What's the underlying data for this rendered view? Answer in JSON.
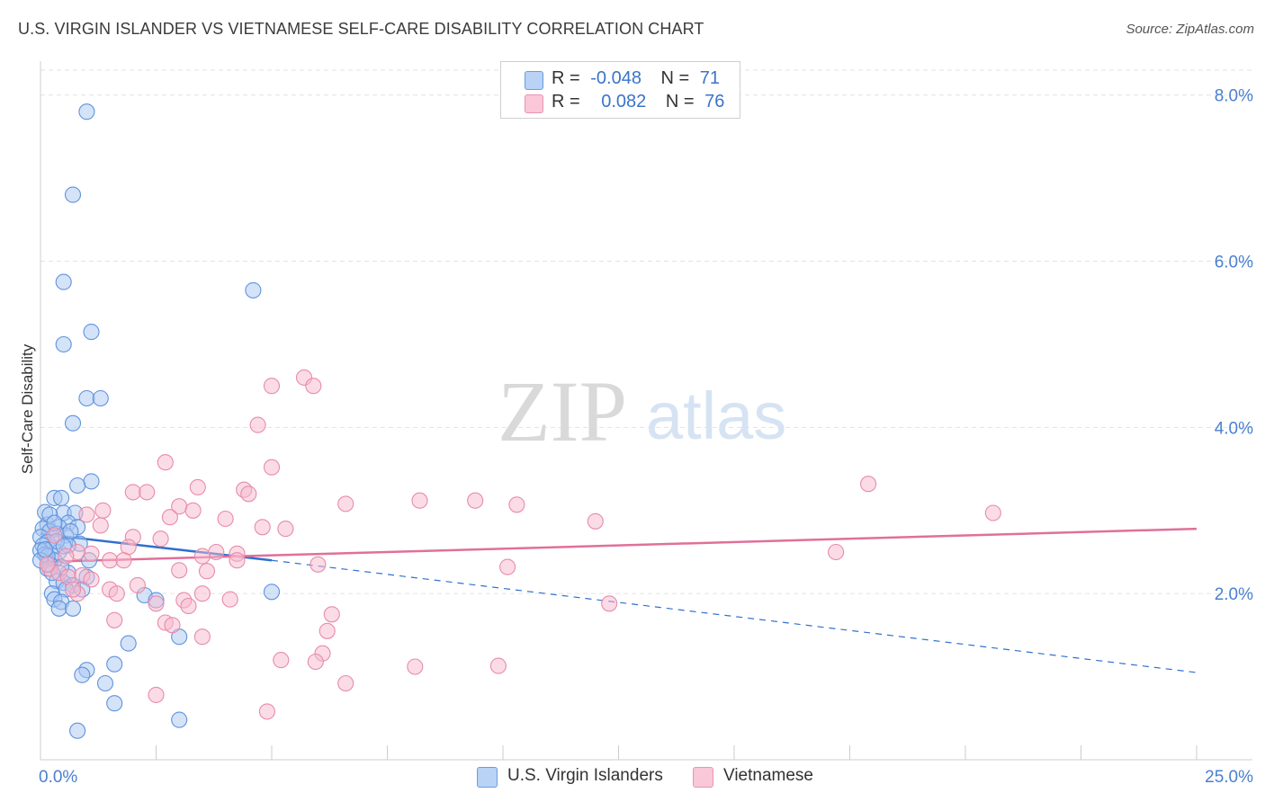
{
  "header": {
    "title": "U.S. VIRGIN ISLANDER VS VIETNAMESE SELF-CARE DISABILITY CORRELATION CHART",
    "source": "Source: ZipAtlas.com"
  },
  "stats": {
    "row1": {
      "r_label": "R =",
      "r_value": "-0.048",
      "n_label": "N =",
      "n_value": "71"
    },
    "row2": {
      "r_label": "R =",
      "r_value": "0.082",
      "n_label": "N =",
      "n_value": "76"
    }
  },
  "legend": {
    "blue_label": "U.S. Virgin Islanders",
    "pink_label": "Vietnamese"
  },
  "watermark": {
    "zip": "ZIP",
    "atlas": "atlas"
  },
  "colors": {
    "blue_fill": "#a9c8f2",
    "blue_stroke": "#5f93dd",
    "blue_line": "#3070cf",
    "pink_fill": "#f7b9cd",
    "pink_stroke": "#e88aaa",
    "pink_line": "#e0709a",
    "tick_color": "#4a7fcf"
  },
  "chart_data": {
    "type": "scatter",
    "title": "U.S. VIRGIN ISLANDER VS VIETNAMESE SELF-CARE DISABILITY CORRELATION CHART",
    "xlabel": "",
    "ylabel": "Self-Care Disability",
    "xlim": [
      0,
      25
    ],
    "ylim": [
      0,
      8.3
    ],
    "x_tick_labels": [
      {
        "value": 0,
        "label": "0.0%"
      },
      {
        "value": 25,
        "label": "25.0%"
      }
    ],
    "y_tick_labels": [
      {
        "value": 2,
        "label": "2.0%"
      },
      {
        "value": 4,
        "label": "4.0%"
      },
      {
        "value": 6,
        "label": "6.0%"
      },
      {
        "value": 8,
        "label": "8.0%"
      }
    ],
    "x_minor_ticks": [
      2.5,
      5,
      7.5,
      10,
      12.5,
      15,
      17.5,
      20,
      22.5,
      25
    ],
    "grid": true,
    "series": [
      {
        "name": "U.S. Virgin Islanders",
        "color": "#5f93dd",
        "r": -0.048,
        "n": 71,
        "trend": {
          "x_solid": [
            0,
            5
          ],
          "y_solid": [
            2.72,
            2.4
          ],
          "x_dash": [
            5,
            25
          ],
          "y_dash": [
            2.4,
            1.05
          ]
        },
        "points": [
          [
            1.0,
            7.8
          ],
          [
            0.7,
            6.8
          ],
          [
            0.5,
            5.75
          ],
          [
            4.6,
            5.65
          ],
          [
            1.1,
            5.15
          ],
          [
            0.5,
            5.0
          ],
          [
            1.0,
            4.35
          ],
          [
            1.3,
            4.35
          ],
          [
            0.7,
            4.05
          ],
          [
            1.1,
            3.35
          ],
          [
            0.8,
            3.3
          ],
          [
            0.3,
            3.15
          ],
          [
            0.45,
            3.15
          ],
          [
            0.1,
            2.98
          ],
          [
            0.5,
            2.97
          ],
          [
            0.75,
            2.97
          ],
          [
            0.6,
            2.85
          ],
          [
            0.15,
            2.83
          ],
          [
            0.4,
            2.8
          ],
          [
            0.8,
            2.8
          ],
          [
            0.05,
            2.78
          ],
          [
            0.2,
            2.75
          ],
          [
            0.35,
            2.72
          ],
          [
            0.55,
            2.7
          ],
          [
            0.0,
            2.68
          ],
          [
            0.15,
            2.62
          ],
          [
            0.85,
            2.6
          ],
          [
            0.05,
            2.58
          ],
          [
            0.25,
            2.55
          ],
          [
            0.0,
            2.52
          ],
          [
            0.4,
            2.5
          ],
          [
            0.1,
            2.47
          ],
          [
            0.3,
            2.4
          ],
          [
            1.05,
            2.4
          ],
          [
            0.2,
            2.35
          ],
          [
            0.6,
            2.25
          ],
          [
            1.0,
            2.2
          ],
          [
            0.35,
            2.15
          ],
          [
            0.5,
            2.13
          ],
          [
            0.7,
            2.1
          ],
          [
            0.55,
            2.05
          ],
          [
            0.9,
            2.05
          ],
          [
            0.25,
            2.0
          ],
          [
            5.0,
            2.02
          ],
          [
            2.25,
            1.98
          ],
          [
            2.5,
            1.92
          ],
          [
            0.3,
            1.93
          ],
          [
            0.45,
            1.9
          ],
          [
            0.4,
            1.82
          ],
          [
            0.7,
            1.82
          ],
          [
            3.0,
            1.48
          ],
          [
            1.9,
            1.4
          ],
          [
            1.6,
            1.15
          ],
          [
            1.0,
            1.08
          ],
          [
            0.9,
            1.02
          ],
          [
            1.4,
            0.92
          ],
          [
            1.6,
            0.68
          ],
          [
            3.0,
            0.48
          ],
          [
            0.8,
            0.35
          ],
          [
            0.15,
            2.3
          ],
          [
            0.6,
            2.58
          ],
          [
            0.35,
            2.63
          ],
          [
            0.2,
            2.95
          ],
          [
            0.15,
            2.45
          ],
          [
            0.45,
            2.32
          ],
          [
            0.0,
            2.4
          ],
          [
            0.25,
            2.25
          ],
          [
            0.3,
            2.85
          ],
          [
            0.65,
            2.75
          ],
          [
            0.1,
            2.53
          ],
          [
            0.5,
            2.57
          ]
        ]
      },
      {
        "name": "Vietnamese",
        "color": "#e88aaa",
        "r": 0.082,
        "n": 76,
        "trend": {
          "x_solid": [
            0,
            25
          ],
          "y_solid": [
            2.38,
            2.78
          ]
        },
        "points": [
          [
            5.7,
            4.6
          ],
          [
            5.0,
            4.5
          ],
          [
            5.9,
            4.5
          ],
          [
            4.7,
            4.03
          ],
          [
            2.7,
            3.58
          ],
          [
            5.0,
            3.52
          ],
          [
            17.9,
            3.32
          ],
          [
            3.4,
            3.28
          ],
          [
            4.4,
            3.25
          ],
          [
            2.0,
            3.22
          ],
          [
            2.3,
            3.22
          ],
          [
            4.5,
            3.2
          ],
          [
            9.4,
            3.12
          ],
          [
            8.2,
            3.12
          ],
          [
            6.6,
            3.08
          ],
          [
            10.3,
            3.07
          ],
          [
            3.0,
            3.05
          ],
          [
            1.35,
            3.0
          ],
          [
            3.3,
            3.0
          ],
          [
            1.0,
            2.95
          ],
          [
            20.6,
            2.97
          ],
          [
            2.8,
            2.92
          ],
          [
            4.0,
            2.9
          ],
          [
            12.0,
            2.87
          ],
          [
            1.3,
            2.82
          ],
          [
            4.8,
            2.8
          ],
          [
            5.3,
            2.78
          ],
          [
            2.0,
            2.68
          ],
          [
            2.6,
            2.66
          ],
          [
            1.9,
            2.56
          ],
          [
            1.1,
            2.48
          ],
          [
            3.8,
            2.5
          ],
          [
            4.25,
            2.48
          ],
          [
            3.5,
            2.45
          ],
          [
            4.25,
            2.4
          ],
          [
            17.2,
            2.5
          ],
          [
            1.5,
            2.4
          ],
          [
            0.8,
            2.5
          ],
          [
            6.0,
            2.35
          ],
          [
            10.1,
            2.32
          ],
          [
            3.0,
            2.28
          ],
          [
            3.6,
            2.27
          ],
          [
            0.2,
            2.3
          ],
          [
            0.4,
            2.25
          ],
          [
            0.6,
            2.2
          ],
          [
            0.9,
            2.22
          ],
          [
            1.1,
            2.17
          ],
          [
            2.1,
            2.1
          ],
          [
            1.5,
            2.05
          ],
          [
            0.8,
            2.0
          ],
          [
            1.65,
            2.0
          ],
          [
            3.5,
            2.0
          ],
          [
            3.1,
            1.92
          ],
          [
            4.1,
            1.93
          ],
          [
            2.5,
            1.88
          ],
          [
            3.2,
            1.85
          ],
          [
            12.3,
            1.88
          ],
          [
            6.3,
            1.75
          ],
          [
            1.6,
            1.68
          ],
          [
            2.7,
            1.65
          ],
          [
            2.85,
            1.62
          ],
          [
            6.2,
            1.55
          ],
          [
            3.5,
            1.48
          ],
          [
            6.1,
            1.28
          ],
          [
            5.2,
            1.2
          ],
          [
            5.95,
            1.18
          ],
          [
            8.1,
            1.12
          ],
          [
            9.9,
            1.13
          ],
          [
            6.6,
            0.92
          ],
          [
            2.5,
            0.78
          ],
          [
            4.9,
            0.58
          ],
          [
            0.3,
            2.7
          ],
          [
            0.55,
            2.45
          ],
          [
            0.15,
            2.35
          ],
          [
            1.8,
            2.4
          ],
          [
            0.7,
            2.05
          ]
        ]
      }
    ]
  }
}
